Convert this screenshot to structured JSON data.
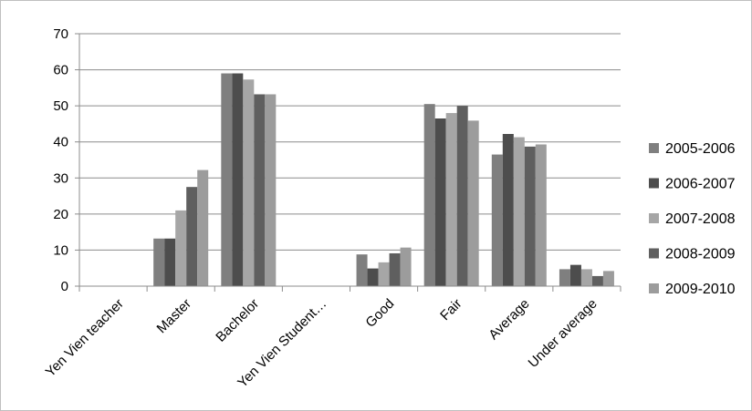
{
  "chart_data": {
    "type": "bar",
    "title": "",
    "xlabel": "",
    "ylabel": "",
    "ylim": [
      0,
      70
    ],
    "yticks": [
      0,
      10,
      20,
      30,
      40,
      50,
      60,
      70
    ],
    "grid": true,
    "legend_position": "right",
    "categories": [
      "Yen Vien teacher",
      "Master",
      "Bachelor",
      "Yen Vien Student…",
      "Good",
      "Fair",
      "Average",
      "Under average"
    ],
    "series": [
      {
        "name": "2005-2006",
        "color": "#7f7f7f",
        "values": [
          0,
          13.2,
          59,
          0,
          8.8,
          50.5,
          36.5,
          4.7
        ]
      },
      {
        "name": "2006-2007",
        "color": "#4d4d4d",
        "values": [
          0,
          13.2,
          59,
          0,
          4.9,
          46.5,
          42.2,
          5.9
        ]
      },
      {
        "name": "2007-2008",
        "color": "#a6a6a6",
        "values": [
          0,
          21,
          57.3,
          0,
          6.6,
          48,
          41.3,
          4.7
        ]
      },
      {
        "name": "2008-2009",
        "color": "#5f5f5f",
        "values": [
          0,
          27.5,
          53.2,
          0,
          9.1,
          50,
          38.7,
          2.8
        ]
      },
      {
        "name": "2009-2010",
        "color": "#9c9c9c",
        "values": [
          0,
          32.2,
          53.2,
          0,
          10.7,
          45.9,
          39.3,
          4.2
        ]
      }
    ]
  }
}
